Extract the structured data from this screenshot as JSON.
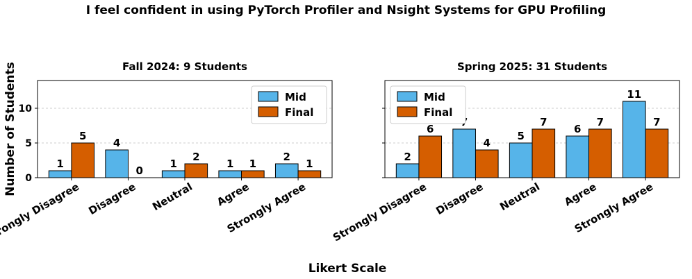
{
  "figure": {
    "suptitle": "I feel confident in using PyTorch Profiler and Nsight Systems for GPU Profiling",
    "shared_ylabel": "Number of Students",
    "shared_xlabel": "Likert Scale"
  },
  "colors": {
    "mid": "#56b4e9",
    "final": "#d55e00",
    "edge": "#000000",
    "grid": "#cccccc"
  },
  "chart_data": [
    {
      "type": "bar",
      "title": "Fall 2024: 9 Students",
      "categories": [
        "Strongly Disagree",
        "Disagree",
        "Neutral",
        "Agree",
        "Strongly Agree"
      ],
      "series": [
        {
          "name": "Mid",
          "values": [
            1,
            4,
            1,
            1,
            2
          ]
        },
        {
          "name": "Final",
          "values": [
            5,
            0,
            2,
            1,
            1
          ]
        }
      ],
      "ylim": [
        0,
        14
      ],
      "yticks": [
        0,
        5,
        10
      ],
      "grid": "y-dotted",
      "legend": "top-right"
    },
    {
      "type": "bar",
      "title": "Spring 2025: 31 Students",
      "categories": [
        "Strongly Disagree",
        "Disagree",
        "Neutral",
        "Agree",
        "Strongly Agree"
      ],
      "series": [
        {
          "name": "Mid",
          "values": [
            2,
            7,
            5,
            6,
            11
          ]
        },
        {
          "name": "Final",
          "values": [
            6,
            4,
            7,
            7,
            7
          ]
        }
      ],
      "ylim": [
        0,
        14
      ],
      "yticks": [
        0,
        5,
        10
      ],
      "grid": "y-dotted",
      "legend": "top-left"
    }
  ]
}
